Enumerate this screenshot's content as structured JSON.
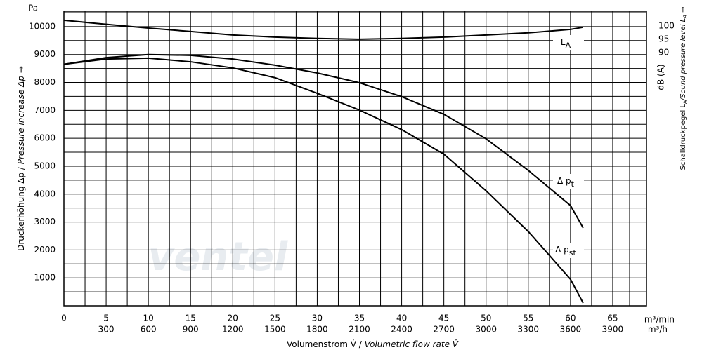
{
  "chart_data": {
    "type": "line",
    "y_unit": "Pa",
    "ylabel": {
      "de": "Druckerhöhung Δp / ",
      "en": "Pressure increase  Δp →"
    },
    "xlabel": {
      "de": "Volumenstrom V̇ / ",
      "en": "Volumetric flow rate V̇"
    },
    "y2_unit": "dB (A)",
    "y2label": {
      "de": "Schalldruckpegel L",
      "sub": "A",
      "en": "/Sound pressure level L",
      "sub2": "A",
      "arrow": " →"
    },
    "x_unit": "m³/min",
    "x2_unit": "m³/h",
    "watermark": "ventel",
    "xlim": [
      0,
      69
    ],
    "xticks": [
      0,
      5,
      10,
      15,
      20,
      25,
      30,
      35,
      40,
      45,
      50,
      55,
      60,
      65
    ],
    "x2lim": [
      0,
      4140
    ],
    "x2ticks": [
      300,
      600,
      900,
      1200,
      1500,
      1800,
      2100,
      2400,
      2700,
      3000,
      3300,
      3600,
      3900
    ],
    "ylim": [
      0,
      10550
    ],
    "yticks": [
      1000,
      2000,
      3000,
      4000,
      5000,
      6000,
      7000,
      8000,
      9000,
      10000
    ],
    "y2lim": [
      -5,
      105.5
    ],
    "y2ticks": [
      90,
      95,
      100
    ],
    "grid": true,
    "x": [
      0,
      5,
      10,
      15,
      20,
      25,
      30,
      35,
      40,
      45,
      50,
      55,
      60,
      61.5
    ],
    "series": [
      {
        "name": "L",
        "subscript": "A",
        "color": "#000000",
        "axis": "y2",
        "values": [
          102.1,
          100.6,
          99.2,
          97.9,
          96.6,
          95.8,
          95.3,
          95,
          95.3,
          95.8,
          96.6,
          97.4,
          98.7,
          99.5
        ]
      },
      {
        "name": "Δ p",
        "subscript": "t",
        "color": "#000000",
        "values": [
          8650,
          8890,
          9000,
          8970,
          8840,
          8620,
          8340,
          7990,
          7490,
          6860,
          5980,
          4850,
          3590,
          2790
        ]
      },
      {
        "name": "Δ p",
        "subscript": "st",
        "color": "#000000",
        "values": [
          8650,
          8840,
          8870,
          8740,
          8520,
          8170,
          7610,
          7010,
          6310,
          5430,
          4120,
          2660,
          950,
          100
        ]
      }
    ]
  }
}
